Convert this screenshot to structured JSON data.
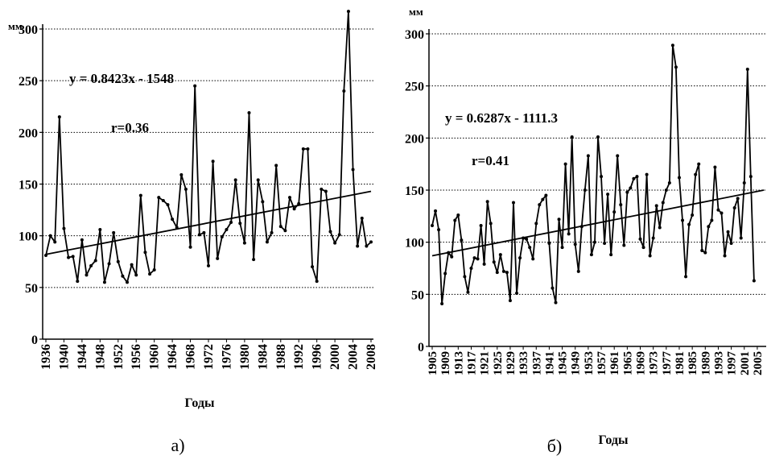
{
  "chart_data": [
    {
      "type": "line",
      "unit_label": "мм",
      "xlabel": "Годы",
      "caption": "а)",
      "equation": "y = 0.8423x - 1548",
      "correlation": "r=0.36",
      "ylim": [
        0,
        300
      ],
      "yticks": [
        "0",
        "50",
        "100",
        "150",
        "200",
        "250",
        "300"
      ],
      "xticks": [
        "1936",
        "1940",
        "1944",
        "1948",
        "1952",
        "1956",
        "1960",
        "1964",
        "1968",
        "1972",
        "1976",
        "1980",
        "1984",
        "1988",
        "1992",
        "1996",
        "2000",
        "2004",
        "2008"
      ],
      "grid": "horizontal dotted",
      "x": [
        1936,
        1937,
        1938,
        1939,
        1940,
        1941,
        1942,
        1943,
        1944,
        1945,
        1946,
        1947,
        1948,
        1949,
        1950,
        1951,
        1952,
        1953,
        1954,
        1955,
        1956,
        1957,
        1958,
        1959,
        1960,
        1961,
        1962,
        1963,
        1964,
        1965,
        1966,
        1967,
        1968,
        1969,
        1970,
        1971,
        1972,
        1973,
        1974,
        1975,
        1976,
        1977,
        1978,
        1979,
        1980,
        1981,
        1982,
        1983,
        1984,
        1985,
        1986,
        1987,
        1988,
        1989,
        1990,
        1991,
        1992,
        1993,
        1994,
        1995,
        1996,
        1997,
        1998,
        1999,
        2000,
        2001,
        2002,
        2003,
        2004,
        2005,
        2006,
        2007,
        2008
      ],
      "series": [
        {
          "values": [
            81,
            100,
            94,
            215,
            107,
            79,
            80,
            56,
            96,
            62,
            71,
            76,
            106,
            55,
            73,
            103,
            75,
            61,
            55,
            72,
            62,
            139,
            84,
            63,
            67,
            137,
            134,
            130,
            116,
            108,
            159,
            145,
            89,
            245,
            101,
            103,
            71,
            172,
            78,
            99,
            106,
            113,
            154,
            112,
            93,
            219,
            77,
            154,
            133,
            94,
            103,
            168,
            109,
            105,
            137,
            126,
            131,
            184,
            184,
            70,
            56,
            145,
            143,
            104,
            93,
            101,
            240,
            317,
            164,
            90,
            117,
            90,
            94
          ],
          "color": "#000000",
          "marker": "dot"
        },
        {
          "kind": "trend",
          "x": [
            1936,
            2008
          ],
          "values": [
            82,
            143
          ],
          "color": "#000000"
        }
      ]
    },
    {
      "type": "line",
      "unit_label": "мм",
      "xlabel": "Годы",
      "caption": "б)",
      "equation": "y = 0.6287x - 1111.3",
      "correlation": "r=0.41",
      "ylim": [
        0,
        300
      ],
      "yticks": [
        "0",
        "50",
        "100",
        "150",
        "200",
        "250",
        "300"
      ],
      "xticks": [
        "1905",
        "1909",
        "1913",
        "1917",
        "1921",
        "1925",
        "1929",
        "1933",
        "1937",
        "1941",
        "1945",
        "1949",
        "1953",
        "1957",
        "1961",
        "1965",
        "1969",
        "1973",
        "1977",
        "1981",
        "1985",
        "1989",
        "1993",
        "1997",
        "2001",
        "2005"
      ],
      "grid": "horizontal dotted",
      "x": [
        1905,
        1906,
        1907,
        1908,
        1909,
        1910,
        1911,
        1912,
        1913,
        1914,
        1915,
        1916,
        1917,
        1918,
        1919,
        1920,
        1921,
        1922,
        1923,
        1924,
        1925,
        1926,
        1927,
        1928,
        1929,
        1930,
        1931,
        1932,
        1933,
        1934,
        1935,
        1936,
        1937,
        1938,
        1939,
        1940,
        1941,
        1942,
        1943,
        1944,
        1945,
        1946,
        1947,
        1948,
        1949,
        1950,
        1951,
        1952,
        1953,
        1954,
        1955,
        1956,
        1957,
        1958,
        1959,
        1960,
        1961,
        1962,
        1963,
        1964,
        1965,
        1966,
        1967,
        1968,
        1969,
        1970,
        1971,
        1972,
        1973,
        1974,
        1975,
        1976,
        1977,
        1978,
        1979,
        1980,
        1981,
        1982,
        1983,
        1984,
        1985,
        1986,
        1987,
        1988,
        1989,
        1990,
        1991,
        1992,
        1993,
        1994,
        1995,
        1996,
        1997,
        1998,
        1999,
        2000,
        2001,
        2002,
        2003,
        2004,
        2005,
        2006,
        2007
      ],
      "series": [
        {
          "values": [
            116,
            130,
            112,
            41,
            70,
            90,
            86,
            121,
            126,
            102,
            67,
            52,
            75,
            85,
            84,
            116,
            79,
            139,
            118,
            81,
            71,
            88,
            72,
            71,
            44,
            138,
            51,
            85,
            104,
            103,
            95,
            84,
            118,
            136,
            141,
            145,
            99,
            56,
            42,
            122,
            95,
            175,
            108,
            201,
            98,
            72,
            115,
            150,
            183,
            88,
            100,
            201,
            163,
            99,
            146,
            88,
            129,
            183,
            136,
            97,
            148,
            152,
            161,
            163,
            103,
            95,
            165,
            87,
            104,
            135,
            114,
            138,
            150,
            157,
            289,
            268,
            162,
            121,
            67,
            117,
            126,
            165,
            175,
            92,
            90,
            115,
            121,
            172,
            131,
            128,
            87,
            110,
            99,
            133,
            142,
            104,
            157,
            266,
            163,
            63,
            null,
            null,
            null
          ],
          "color": "#000000",
          "marker": "dot"
        },
        {
          "kind": "trend",
          "x": [
            1905,
            2007
          ],
          "values": [
            87,
            150
          ],
          "color": "#000000"
        }
      ]
    }
  ]
}
